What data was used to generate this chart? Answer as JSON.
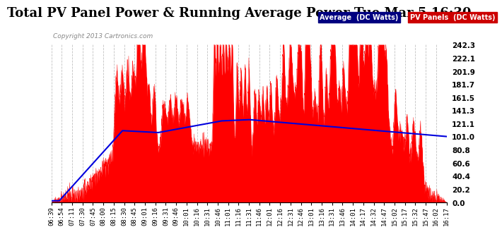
{
  "title": "Total PV Panel Power & Running Average Power Tue Mar 5 16:30",
  "copyright": "Copyright 2013 Cartronics.com",
  "ylabel_right_ticks": [
    0.0,
    20.2,
    40.4,
    60.6,
    80.8,
    101.0,
    121.1,
    141.3,
    161.5,
    181.7,
    201.9,
    222.1,
    242.3
  ],
  "ylim": [
    0.0,
    242.3
  ],
  "legend_avg_label": "Average  (DC Watts)",
  "legend_pv_label": "PV Panels  (DC Watts)",
  "legend_avg_bg": "#000080",
  "legend_pv_bg": "#cc0000",
  "background_color": "#ffffff",
  "plot_bg_color": "#ffffff",
  "grid_color": "#bbbbbb",
  "title_fontsize": 13,
  "x_labels": [
    "06:39",
    "06:54",
    "07:11",
    "07:30",
    "07:45",
    "08:00",
    "08:15",
    "08:30",
    "08:45",
    "09:01",
    "09:16",
    "09:31",
    "09:46",
    "10:01",
    "10:16",
    "10:31",
    "10:46",
    "11:01",
    "11:16",
    "11:31",
    "11:46",
    "12:01",
    "12:16",
    "12:31",
    "12:46",
    "13:01",
    "13:16",
    "13:31",
    "13:46",
    "14:01",
    "14:17",
    "14:32",
    "14:47",
    "15:02",
    "15:17",
    "15:32",
    "15:47",
    "16:02",
    "16:17"
  ]
}
